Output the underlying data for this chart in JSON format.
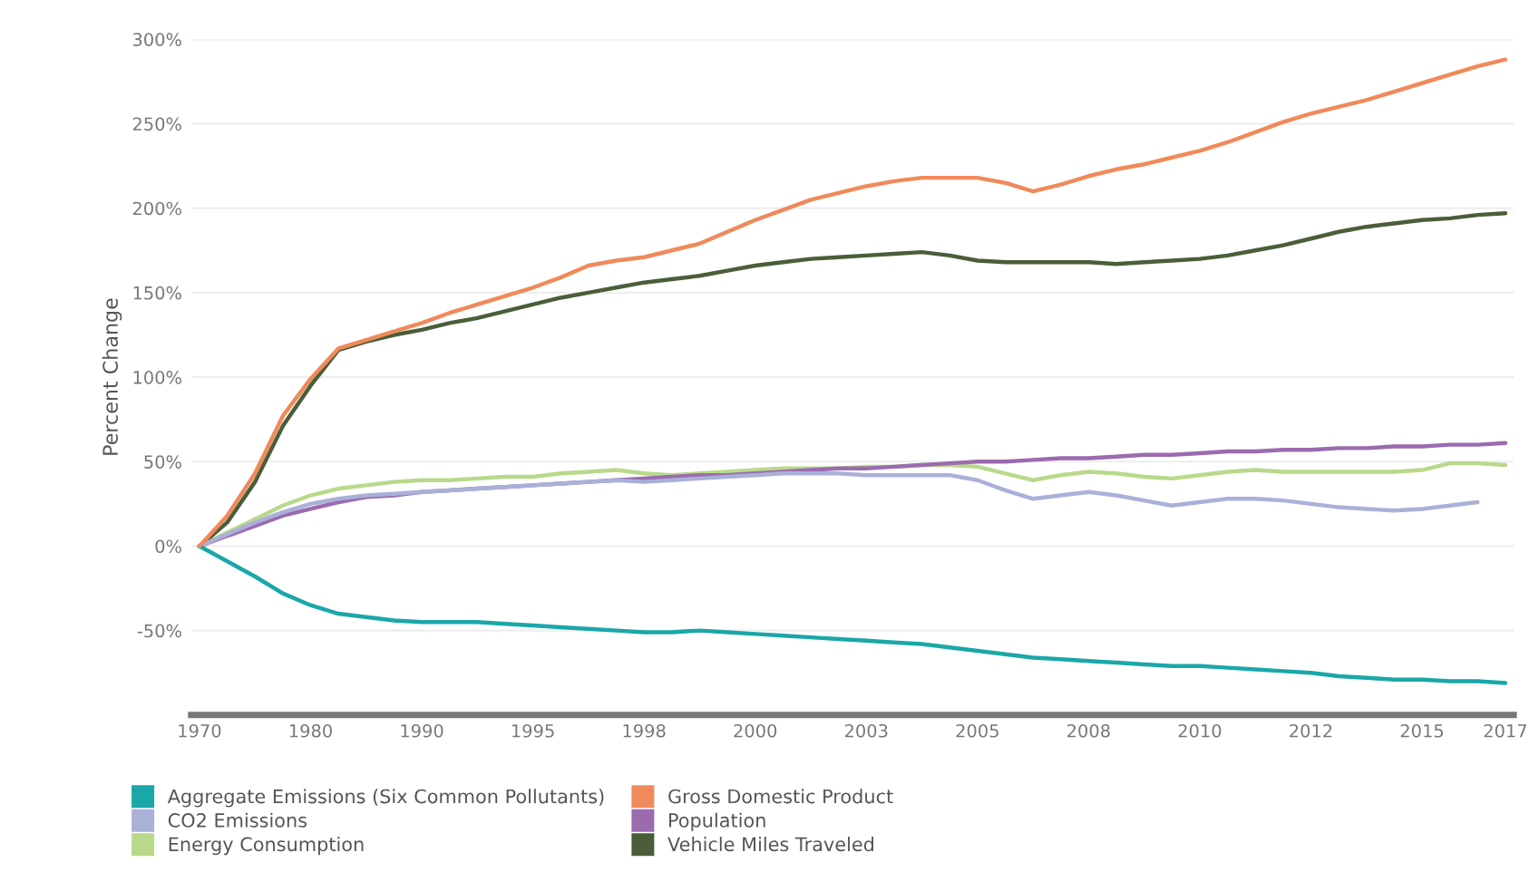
{
  "chart_data": {
    "type": "line",
    "ylabel": "Percent Change",
    "categories": [
      "1970",
      null,
      null,
      null,
      "1980",
      null,
      null,
      null,
      "1990",
      null,
      null,
      null,
      "1995",
      null,
      null,
      null,
      "1998",
      null,
      null,
      null,
      "2000",
      null,
      null,
      null,
      "2003",
      null,
      null,
      null,
      "2005",
      null,
      null,
      null,
      "2008",
      null,
      null,
      null,
      "2010",
      null,
      null,
      null,
      "2012",
      null,
      null,
      null,
      "2015",
      null,
      null,
      "2017"
    ],
    "series": [
      {
        "name": "Aggregate Emissions (Six Common Pollutants)",
        "color": "#1aa7a8",
        "values": [
          0,
          -9,
          -18,
          -28,
          -35,
          -40,
          -42,
          -44,
          -45,
          -45,
          -45,
          -46,
          -47,
          -48,
          -49,
          -50,
          -51,
          -51,
          -50,
          -51,
          -52,
          -53,
          -54,
          -55,
          -56,
          -57,
          -58,
          -60,
          -62,
          -64,
          -66,
          -67,
          -68,
          -69,
          -70,
          -71,
          -71,
          -72,
          -73,
          -74,
          -75,
          -77,
          -78,
          -79,
          -79,
          -80,
          -80,
          -81
        ]
      },
      {
        "name": "CO2 Emissions",
        "color": "#aab0d8",
        "values": [
          0,
          7,
          14,
          20,
          25,
          28,
          30,
          31,
          32,
          33,
          34,
          35,
          36,
          37,
          38,
          39,
          38,
          39,
          40,
          41,
          42,
          43,
          43,
          43,
          42,
          42,
          42,
          42,
          39,
          33,
          28,
          30,
          32,
          30,
          27,
          24,
          26,
          28,
          28,
          27,
          25,
          23,
          22,
          21,
          22,
          24,
          26,
          null
        ]
      },
      {
        "name": "Energy Consumption",
        "color": "#b8d98a",
        "values": [
          0,
          8,
          16,
          24,
          30,
          34,
          36,
          38,
          39,
          39,
          40,
          41,
          41,
          43,
          44,
          45,
          43,
          42,
          43,
          44,
          45,
          46,
          46,
          46,
          47,
          47,
          48,
          48,
          47,
          43,
          39,
          42,
          44,
          43,
          41,
          40,
          42,
          44,
          45,
          44,
          44,
          44,
          44,
          44,
          45,
          49,
          49,
          48
        ]
      },
      {
        "name": "Gross Domestic Product",
        "color": "#f08a5a",
        "values": [
          0,
          18,
          43,
          77,
          99,
          117,
          122,
          127,
          132,
          138,
          143,
          148,
          153,
          159,
          166,
          169,
          171,
          175,
          179,
          186,
          193,
          199,
          205,
          209,
          213,
          216,
          218,
          218,
          218,
          215,
          210,
          214,
          219,
          223,
          226,
          230,
          234,
          239,
          245,
          251,
          256,
          260,
          264,
          269,
          274,
          279,
          284,
          288
        ]
      },
      {
        "name": "Population",
        "color": "#9b6bb0",
        "values": [
          0,
          6,
          12,
          18,
          22,
          26,
          29,
          30,
          32,
          33,
          34,
          35,
          36,
          37,
          38,
          39,
          40,
          41,
          42,
          42,
          43,
          44,
          45,
          46,
          46,
          47,
          48,
          49,
          50,
          50,
          51,
          52,
          52,
          53,
          54,
          54,
          55,
          56,
          56,
          57,
          57,
          58,
          58,
          59,
          59,
          60,
          60,
          61
        ]
      },
      {
        "name": "Vehicle Miles Traveled",
        "color": "#4a5e3a",
        "values": [
          0,
          14,
          38,
          71,
          95,
          116,
          121,
          125,
          128,
          132,
          135,
          139,
          143,
          147,
          150,
          153,
          156,
          158,
          160,
          163,
          166,
          168,
          170,
          171,
          172,
          173,
          174,
          172,
          169,
          168,
          168,
          168,
          168,
          167,
          168,
          169,
          170,
          172,
          175,
          178,
          182,
          186,
          189,
          191,
          193,
          194,
          196,
          197
        ]
      }
    ],
    "ylim": [
      -100,
      300
    ],
    "yticks": [
      {
        "value": -50,
        "label": "-50%"
      },
      {
        "value": 0,
        "label": "0%"
      },
      {
        "value": 50,
        "label": "50%"
      },
      {
        "value": 100,
        "label": "100%"
      },
      {
        "value": 150,
        "label": "150%"
      },
      {
        "value": 200,
        "label": "200%"
      },
      {
        "value": 250,
        "label": "250%"
      },
      {
        "value": 300,
        "label": "300%"
      }
    ],
    "grid": "y",
    "legend": "bottom",
    "marker": "none",
    "line_style": "solid"
  }
}
